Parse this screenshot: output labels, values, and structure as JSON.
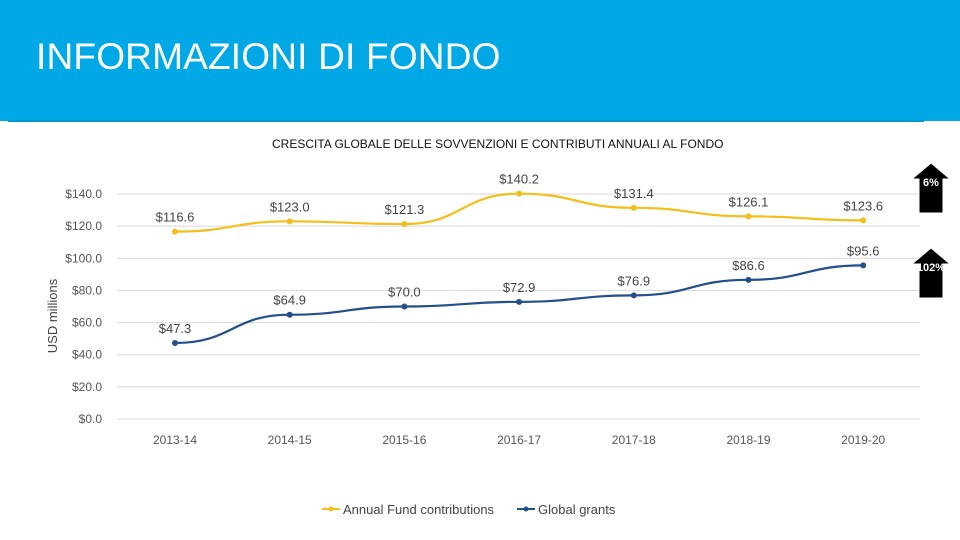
{
  "header": {
    "title": "INFORMAZIONI DI FONDO",
    "background_color": "#00a9e6"
  },
  "chart_data": {
    "type": "line",
    "title": "CRESCITA GLOBALE DELLE SOVVENZIONI E CONTRIBUTI ANNUALI AL FONDO",
    "ylabel": "USD millions",
    "xlabel": "",
    "categories": [
      "2013-14",
      "2014-15",
      "2015-16",
      "2016-17",
      "2017-18",
      "2018-19",
      "2019-20"
    ],
    "ylim": [
      0,
      140
    ],
    "yticks": [
      "$0.0",
      "$20.0",
      "$40.0",
      "$60.0",
      "$80.0",
      "$100.0",
      "$120.0",
      "$140.0"
    ],
    "grid": true,
    "legend_position": "bottom",
    "series": [
      {
        "name": "Annual Fund contributions",
        "color": "#f2bf1b",
        "values": [
          116.6,
          123.0,
          121.3,
          140.2,
          131.4,
          126.1,
          123.6
        ],
        "labels": [
          "$116.6",
          "$123.0",
          "$121.3",
          "$140.2",
          "$131.4",
          "$126.1",
          "$123.6"
        ]
      },
      {
        "name": "Global grants",
        "color": "#234f8c",
        "values": [
          47.3,
          64.9,
          70.0,
          72.9,
          76.9,
          86.6,
          95.6
        ],
        "labels": [
          "$47.3",
          "$64.9",
          "$70.0",
          "$72.9",
          "$76.9",
          "$86.6",
          "$95.6"
        ]
      }
    ],
    "annotations": [
      {
        "text": "6%",
        "series": "Annual Fund contributions",
        "direction": "up"
      },
      {
        "text": "102%",
        "series": "Global grants",
        "direction": "up"
      }
    ]
  }
}
